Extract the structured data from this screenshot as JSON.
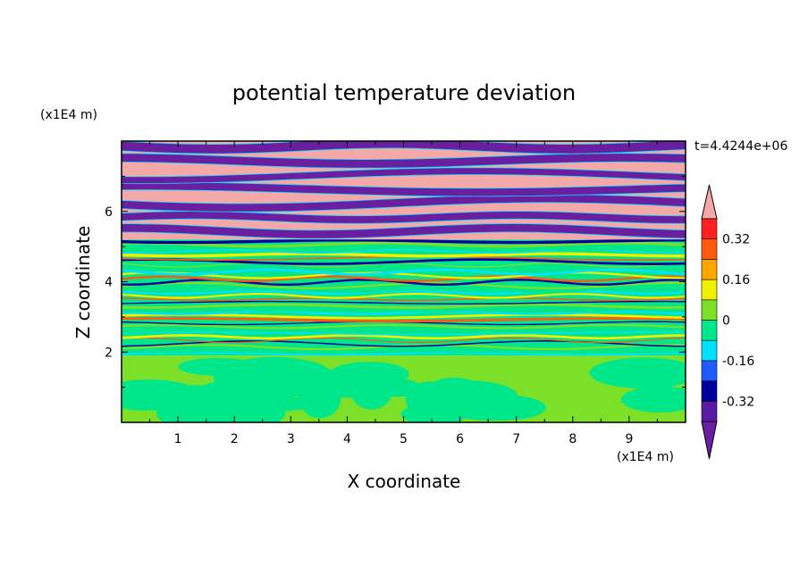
{
  "chart_data": {
    "type": "heatmap",
    "title": "potential temperature deviation",
    "xlabel": "X coordinate",
    "ylabel": "Z coordinate",
    "x_unit": "(x1E4 m)",
    "y_unit": "(x1E4 m)",
    "time_label": "t=4.4244e+06",
    "xlim": [
      0,
      10
    ],
    "ylim": [
      0,
      8
    ],
    "x_ticks": [
      "1",
      "2",
      "3",
      "4",
      "5",
      "6",
      "7",
      "8",
      "9"
    ],
    "y_ticks": [
      "2",
      "4",
      "6"
    ],
    "colorbar": {
      "levels": [
        -0.4,
        -0.32,
        -0.24,
        -0.16,
        -0.08,
        0,
        0.08,
        0.16,
        0.24,
        0.32,
        0.4
      ],
      "tick_labels": [
        "0.32",
        "0.16",
        "0",
        "-0.16",
        "-0.32"
      ],
      "tick_values": [
        0.32,
        0.16,
        0,
        -0.16,
        -0.32
      ],
      "colors_low_to_high": [
        "#5a1aa6",
        "#00009e",
        "#1e5cff",
        "#00e0ff",
        "#00e68a",
        "#7de028",
        "#f0f000",
        "#ffa500",
        "#ff5a10",
        "#ff2020"
      ],
      "under_color": "#6a1fa0",
      "over_color": "#f5a8a8"
    },
    "regions": [
      {
        "z_range": [
          0,
          1.9
        ],
        "dominant_range": "-0.08 to 0.08",
        "colors": [
          "#7de028",
          "#00e68a"
        ]
      },
      {
        "z_range": [
          1.9,
          5.2
        ],
        "dominant_range": "-0.4 to 0.4 (fine layering)",
        "colors": [
          "#7de028",
          "#00e68a",
          "#00e0ff",
          "#f0f000",
          "#ff5a10",
          "#00009e"
        ]
      },
      {
        "z_range": [
          5.2,
          8.0
        ],
        "dominant_range": "below -0.4 / above 0.4 (alternating bands)",
        "colors": [
          "#6a1fa0",
          "#f5a8a8"
        ]
      }
    ]
  }
}
